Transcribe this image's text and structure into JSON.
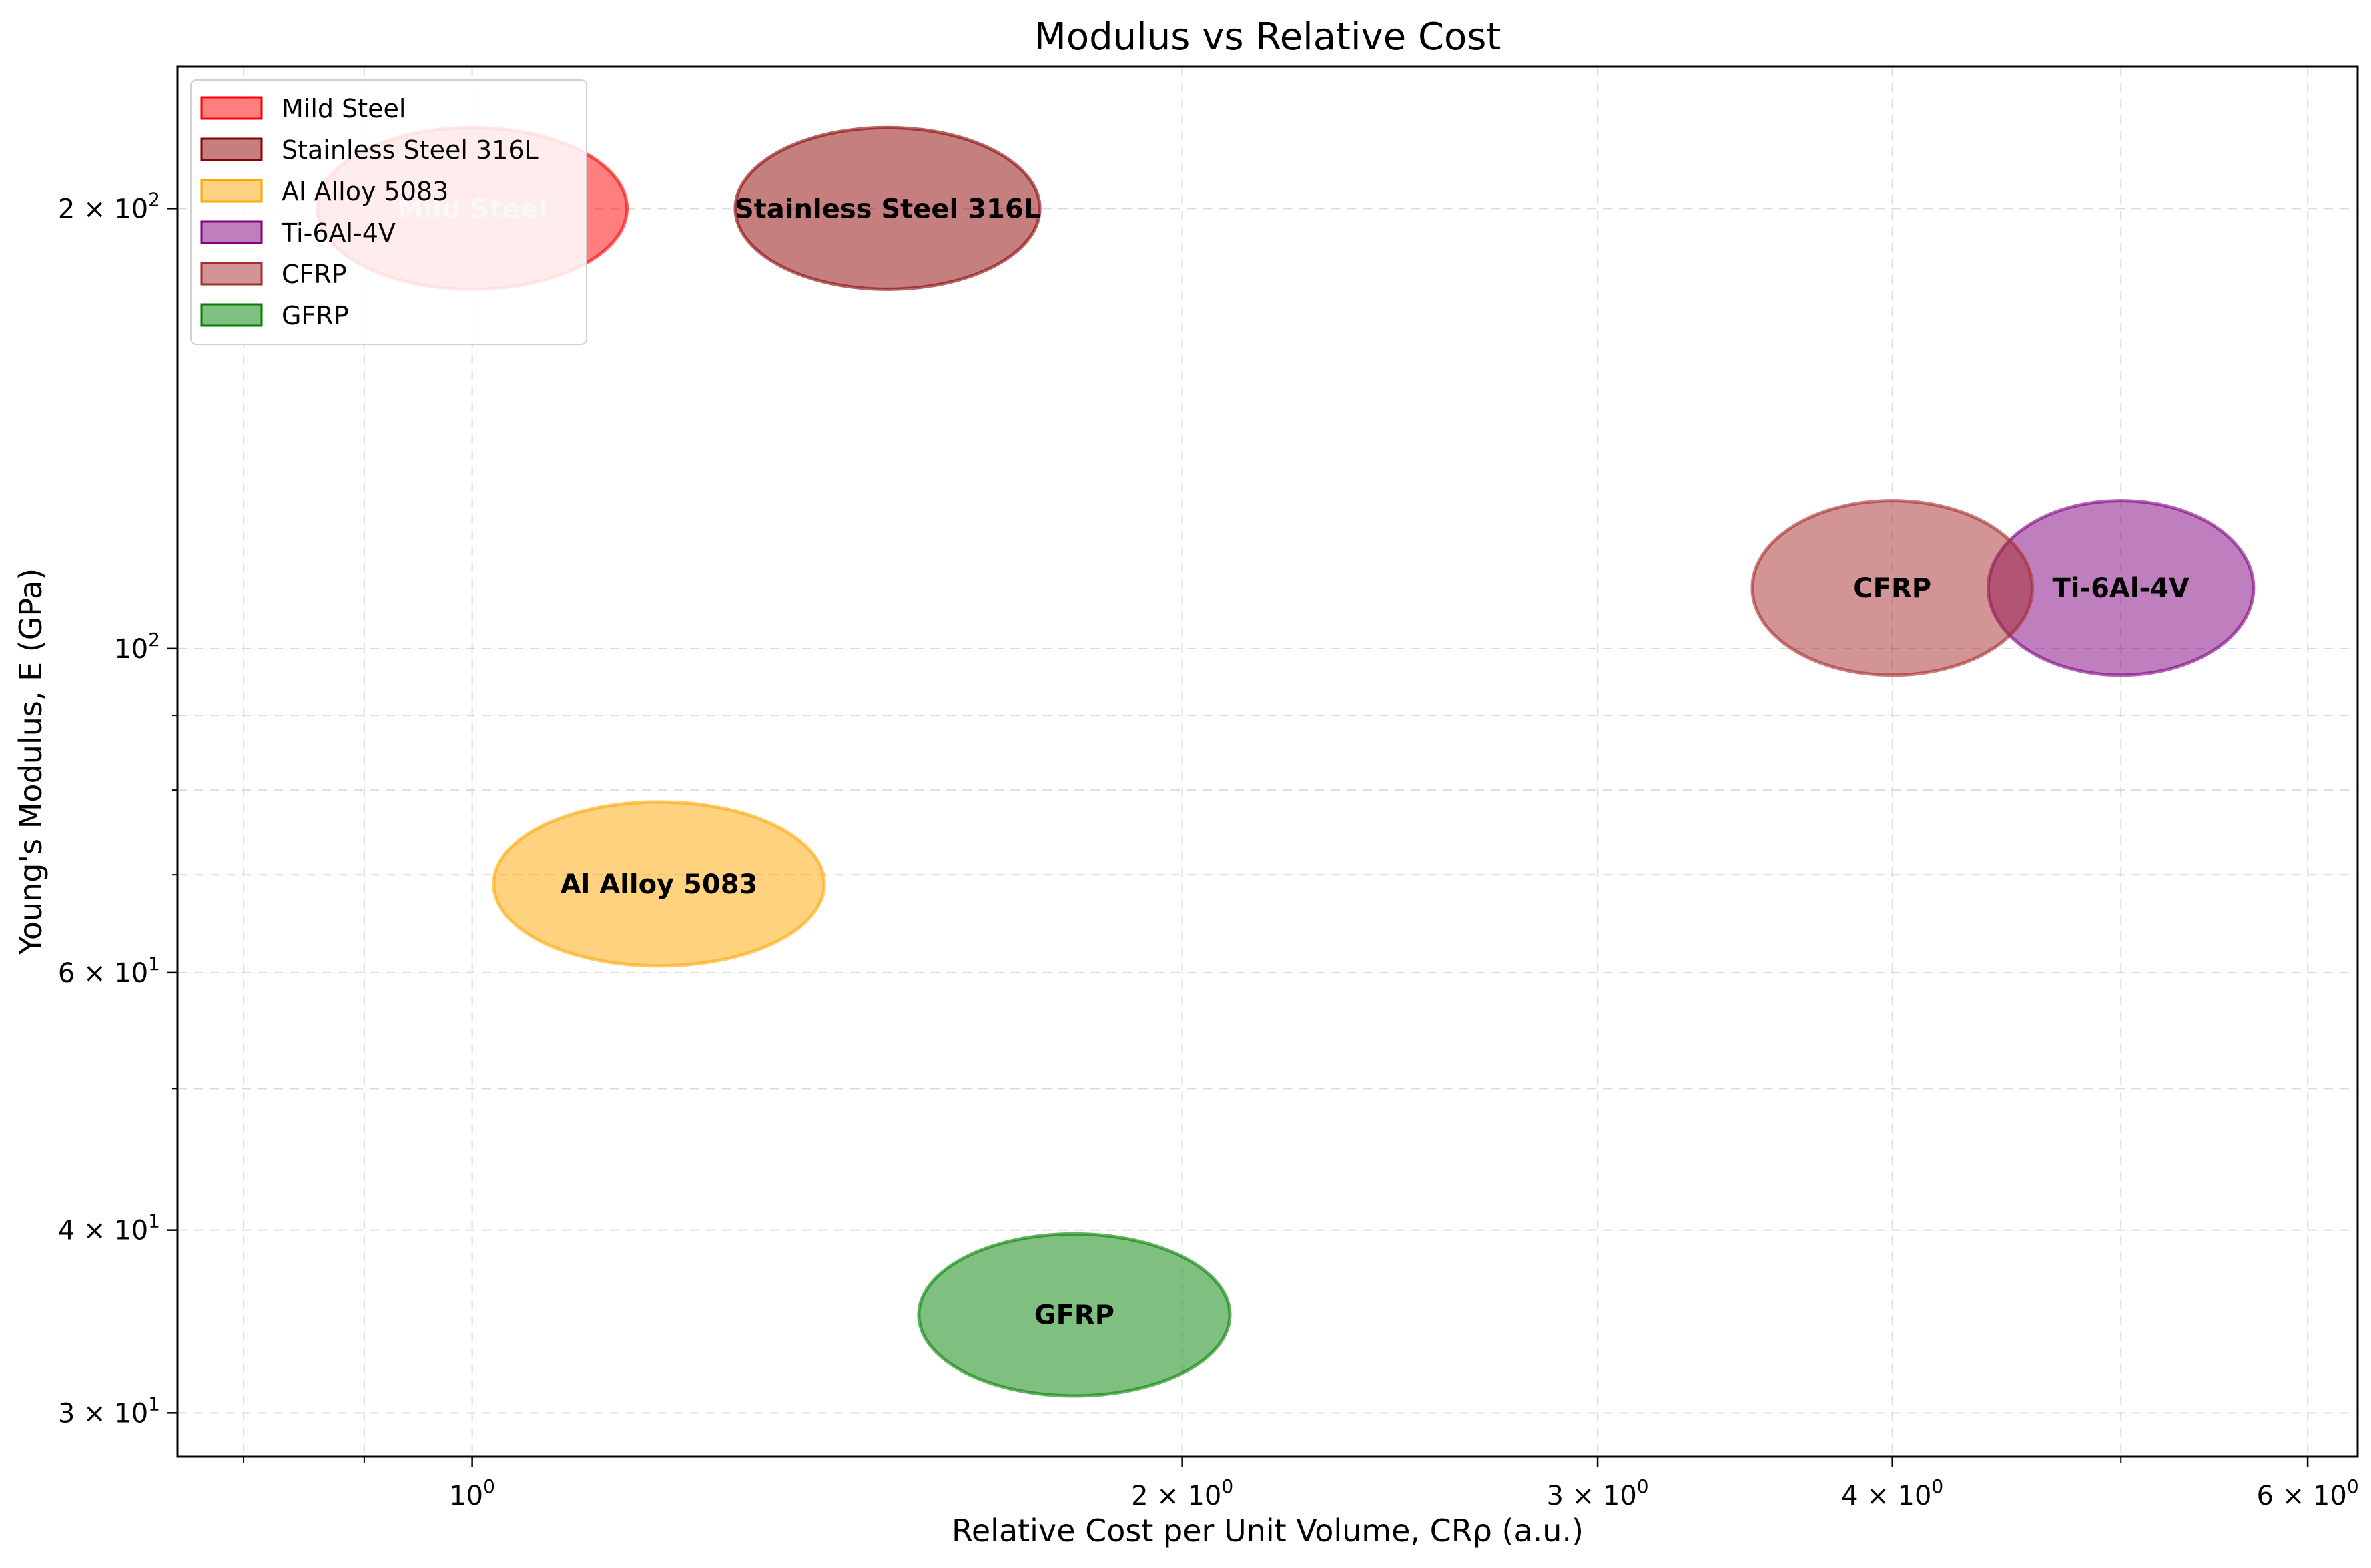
{
  "chart_data": {
    "type": "scatter",
    "title": "Modulus vs Relative Cost",
    "xlabel": "Relative Cost per Unit Volume, CRρ (a.u.)",
    "ylabel": "Young's Modulus, E (GPa)",
    "xscale": "log",
    "yscale": "log",
    "xlim": [
      0.75,
      6.3
    ],
    "ylim": [
      28,
      250
    ],
    "grid": true,
    "legend_position": "top-left",
    "x_ticks": [
      {
        "value": 1,
        "base": "10",
        "exp": "0"
      },
      {
        "value": 2,
        "base": "2 × 10",
        "exp": "0"
      },
      {
        "value": 3,
        "base": "3 × 10",
        "exp": "0"
      },
      {
        "value": 4,
        "base": "4 × 10",
        "exp": "0"
      },
      {
        "value": 6,
        "base": "6 × 10",
        "exp": "0"
      }
    ],
    "x_minor_ticks": [
      0.8,
      0.9,
      5
    ],
    "y_ticks": [
      {
        "value": 30,
        "base": "3 × 10",
        "exp": "1"
      },
      {
        "value": 40,
        "base": "4 × 10",
        "exp": "1"
      },
      {
        "value": 60,
        "base": "6 × 10",
        "exp": "1"
      },
      {
        "value": 100,
        "base": "10",
        "exp": "2"
      },
      {
        "value": 200,
        "base": "2 × 10",
        "exp": "2"
      }
    ],
    "y_minor_ticks": [
      50,
      70,
      80,
      90
    ],
    "series": [
      {
        "name": "Mild Steel",
        "x_range": [
          0.85,
          1.15
        ],
        "y_range": [
          176,
          227
        ],
        "center": [
          1.0,
          200
        ],
        "color": "#ff0000",
        "fill_alpha": 0.5,
        "label_color": "#cccccc"
      },
      {
        "name": "Stainless Steel 316L",
        "x_range": [
          1.3,
          1.75
        ],
        "y_range": [
          176,
          227
        ],
        "center": [
          1.5,
          200
        ],
        "color": "#8b0000",
        "fill_alpha": 0.5,
        "label_color": "#000000"
      },
      {
        "name": "Al Alloy 5083",
        "x_range": [
          1.05,
          1.45
        ],
        "y_range": [
          61,
          79
        ],
        "center": [
          1.2,
          69
        ],
        "color": "#ffa500",
        "fill_alpha": 0.5,
        "label_color": "#000000"
      },
      {
        "name": "Ti-6Al-4V",
        "x_range": [
          4.4,
          5.7
        ],
        "y_range": [
          95,
          125
        ],
        "center": [
          5.0,
          110
        ],
        "color": "#800080",
        "fill_alpha": 0.5,
        "label_color": "#000000"
      },
      {
        "name": "CFRP",
        "x_range": [
          3.5,
          4.6
        ],
        "y_range": [
          95,
          125
        ],
        "center": [
          4.0,
          110
        ],
        "color": "#a52a2a",
        "fill_alpha": 0.5,
        "label_color": "#000000"
      },
      {
        "name": "GFRP",
        "x_range": [
          1.55,
          2.1
        ],
        "y_range": [
          31,
          40
        ],
        "center": [
          1.8,
          35
        ],
        "color": "#008000",
        "fill_alpha": 0.5,
        "label_color": "#000000"
      }
    ]
  }
}
